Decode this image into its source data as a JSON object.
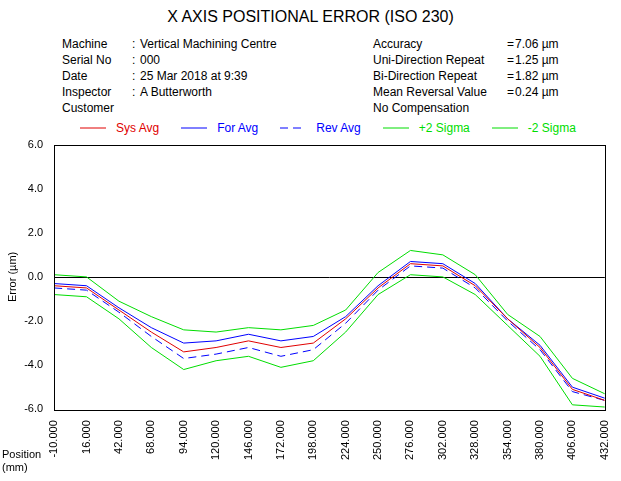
{
  "chart_data": {
    "type": "line",
    "title": "X AXIS POSITIONAL ERROR (ISO 230)",
    "info_left": [
      {
        "label": "Machine",
        "separator": ":",
        "value": "Vertical Machining Centre"
      },
      {
        "label": "Serial No",
        "separator": ":",
        "value": "000"
      },
      {
        "label": "Date",
        "separator": ":",
        "value": "25 Mar 2018 at 9:39"
      },
      {
        "label": "Inspector",
        "separator": ":",
        "value": "A Butterworth"
      },
      {
        "label": "Customer"
      }
    ],
    "info_right": [
      {
        "label": "Accuracy",
        "separator": "=",
        "value": "7.06 µm"
      },
      {
        "label": "Uni-Direction Repeat",
        "separator": "=",
        "value": "1.25 µm"
      },
      {
        "label": "Bi-Direction Repeat",
        "separator": "=",
        "value": "1.82 µm"
      },
      {
        "label": "Mean Reversal Value",
        "separator": "=",
        "value": "0.24 µm"
      },
      {
        "label": "No Compensation"
      }
    ],
    "xlabel": "Position (mm)",
    "ylabel": "Error (µm)",
    "legend": "top",
    "grid": false,
    "hlines": [
      0
    ],
    "x": [
      -10,
      16,
      42,
      68,
      94,
      120,
      146,
      172,
      198,
      224,
      250,
      276,
      302,
      328,
      354,
      380,
      406,
      432
    ],
    "series": [
      {
        "name": "Sys Avg",
        "color": "#e00000",
        "line_style": "solid",
        "marker": "none",
        "values": [
          -0.4,
          -0.5,
          -1.5,
          -2.5,
          -3.4,
          -3.2,
          -2.9,
          -3.2,
          -3.0,
          -1.9,
          -0.5,
          0.6,
          0.5,
          -0.4,
          -1.9,
          -3.2,
          -5.1,
          -5.6
        ]
      },
      {
        "name": "For Avg",
        "color": "#0000ff",
        "line_style": "solid",
        "marker": "none",
        "values": [
          -0.3,
          -0.4,
          -1.4,
          -2.3,
          -3.0,
          -2.9,
          -2.6,
          -2.9,
          -2.7,
          -1.8,
          -0.4,
          0.7,
          0.6,
          -0.3,
          -1.9,
          -3.1,
          -5.0,
          -5.5
        ]
      },
      {
        "name": "Rev Avg",
        "color": "#0000ff",
        "line_style": "dashed",
        "marker": "none",
        "values": [
          -0.5,
          -0.6,
          -1.6,
          -2.7,
          -3.7,
          -3.5,
          -3.2,
          -3.6,
          -3.3,
          -2.1,
          -0.6,
          0.5,
          0.4,
          -0.5,
          -2.0,
          -3.3,
          -5.2,
          -5.6
        ]
      },
      {
        "name": "+2 Sigma",
        "color": "#00dd00",
        "line_style": "solid",
        "marker": "none",
        "values": [
          0.1,
          0.0,
          -1.1,
          -1.8,
          -2.4,
          -2.5,
          -2.3,
          -2.4,
          -2.2,
          -1.5,
          0.2,
          1.2,
          1.0,
          0.1,
          -1.7,
          -2.7,
          -4.6,
          -5.3
        ]
      },
      {
        "name": "-2 Sigma",
        "color": "#00dd00",
        "line_style": "solid",
        "marker": "none",
        "values": [
          -0.8,
          -0.9,
          -1.9,
          -3.2,
          -4.2,
          -3.8,
          -3.6,
          -4.1,
          -3.8,
          -2.5,
          -0.8,
          0.1,
          0.0,
          -0.8,
          -2.2,
          -3.6,
          -5.8,
          -5.9
        ]
      }
    ],
    "xlim": [
      -10,
      432
    ],
    "xticks": [
      {
        "value": -10,
        "label": "-10.000"
      },
      {
        "value": 16,
        "label": "16.000"
      },
      {
        "value": 42,
        "label": "42.000"
      },
      {
        "value": 68,
        "label": "68.000"
      },
      {
        "value": 94,
        "label": "94.000"
      },
      {
        "value": 120,
        "label": "120.000"
      },
      {
        "value": 146,
        "label": "146.000"
      },
      {
        "value": 172,
        "label": "172.000"
      },
      {
        "value": 198,
        "label": "198.000"
      },
      {
        "value": 224,
        "label": "224.000"
      },
      {
        "value": 250,
        "label": "250.000"
      },
      {
        "value": 276,
        "label": "276.000"
      },
      {
        "value": 302,
        "label": "302.000"
      },
      {
        "value": 328,
        "label": "328.000"
      },
      {
        "value": 354,
        "label": "354.000"
      },
      {
        "value": 380,
        "label": "380.000"
      },
      {
        "value": 406,
        "label": "406.000"
      },
      {
        "value": 432,
        "label": "432.000"
      }
    ],
    "ylim": [
      -6,
      6
    ],
    "yticks": [
      {
        "value": -6,
        "label": "-6.0"
      },
      {
        "value": -4,
        "label": "-4.0"
      },
      {
        "value": -2,
        "label": "-2.0"
      },
      {
        "value": 0,
        "label": "0.0"
      },
      {
        "value": 2,
        "label": "2.0"
      },
      {
        "value": 4,
        "label": "4.0"
      },
      {
        "value": 6,
        "label": "6.0"
      }
    ]
  }
}
